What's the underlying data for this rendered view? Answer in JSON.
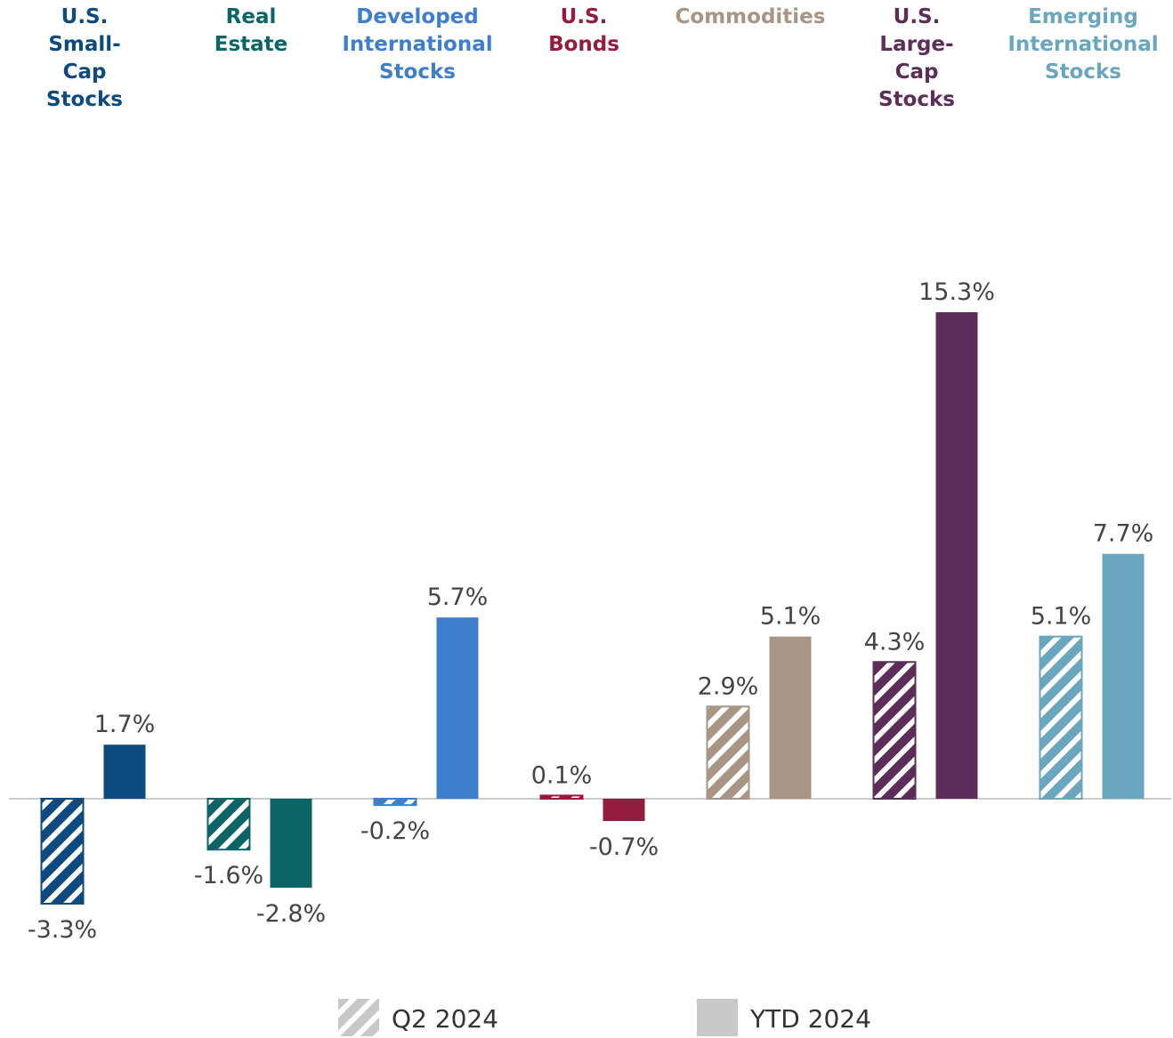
{
  "chart_data": {
    "type": "bar",
    "categories": [
      "U.S. Small-Cap Stocks",
      "Real Estate",
      "Developed International Stocks",
      "U.S. Bonds",
      "Commodities",
      "U.S. Large-Cap Stocks",
      "Emerging International Stocks"
    ],
    "colors": [
      "#0d4a7f",
      "#0b6466",
      "#3d7fcc",
      "#941c3f",
      "#a89583",
      "#5c2d58",
      "#6aa6bd"
    ],
    "series": [
      {
        "name": "Q2 2024",
        "pattern": "hatched",
        "color": "#c8c8c8",
        "values": [
          -3.3,
          -1.6,
          -0.2,
          0.1,
          2.9,
          4.3,
          5.1
        ],
        "value_labels": [
          "-3.3%",
          "-1.6%",
          "-0.2%",
          "0.1%",
          "2.9%",
          "4.3%",
          "5.1%"
        ]
      },
      {
        "name": "YTD 2024",
        "pattern": "solid",
        "color": "#c8c8c8",
        "values": [
          1.7,
          -2.8,
          5.7,
          -0.7,
          5.1,
          15.3,
          7.7
        ],
        "value_labels": [
          "1.7%",
          "-2.8%",
          "5.7%",
          "-0.7%",
          "5.1%",
          "15.3%",
          "7.7%"
        ]
      }
    ]
  }
}
